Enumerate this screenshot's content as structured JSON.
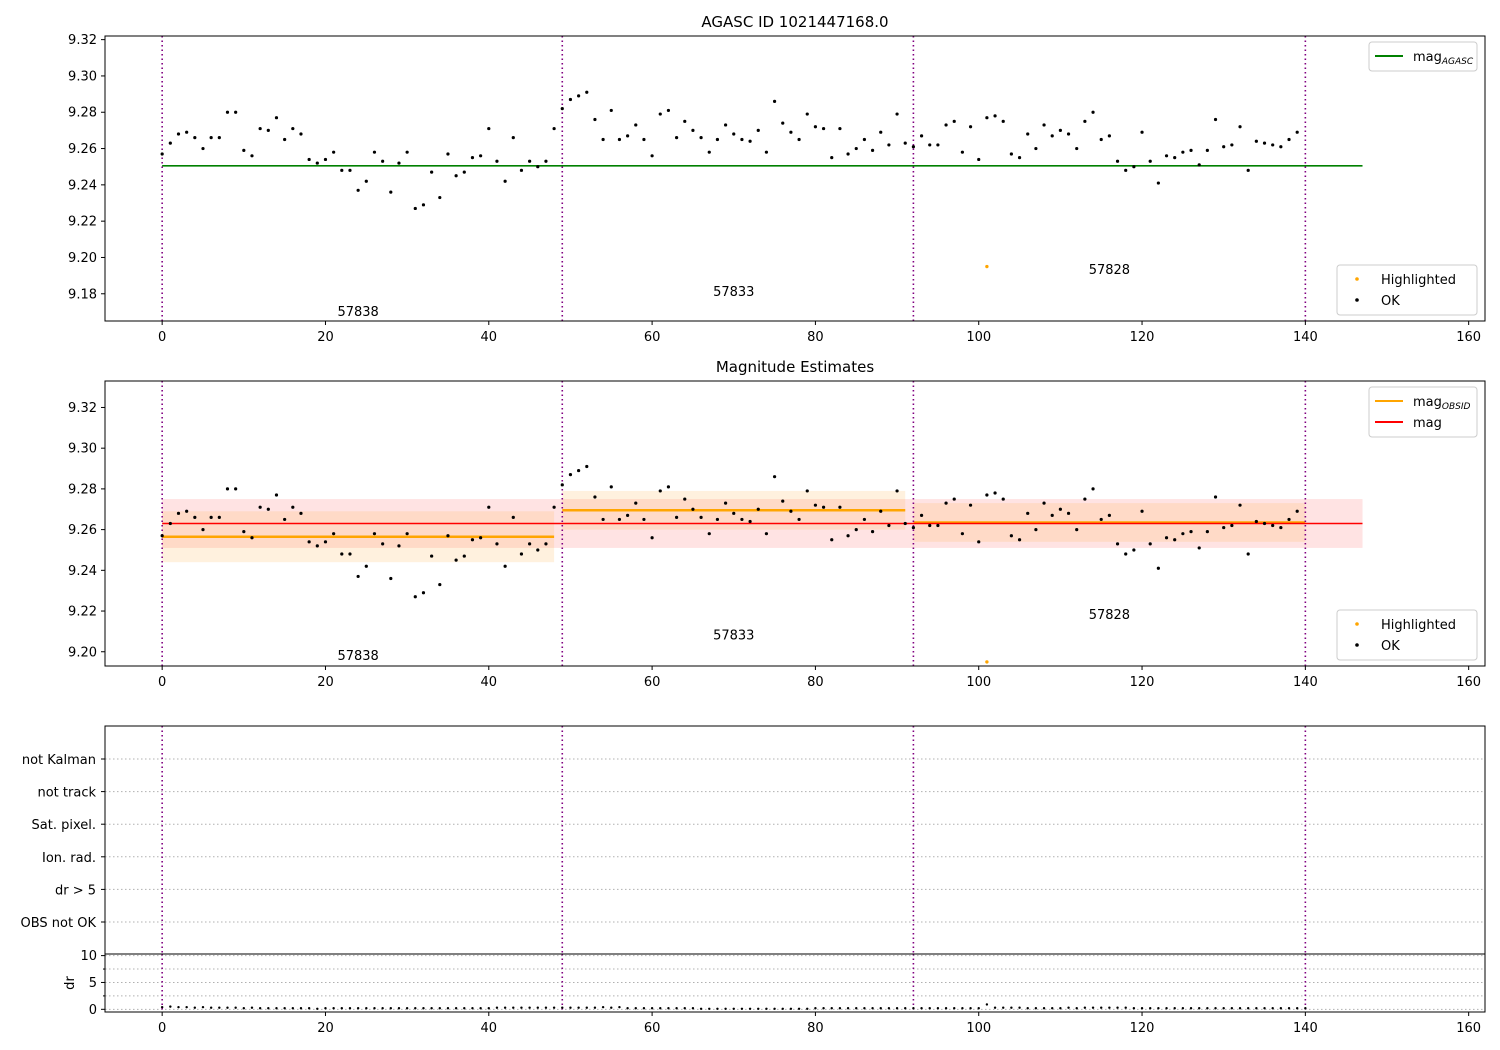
{
  "chart_data": [
    {
      "type": "scatter",
      "title": "AGASC ID 1021447168.0",
      "xlim": [
        -7,
        162
      ],
      "ylim": [
        9.165,
        9.322
      ],
      "xticks": [
        0,
        20,
        40,
        60,
        80,
        100,
        120,
        140,
        160
      ],
      "yticks": [
        9.18,
        9.2,
        9.22,
        9.24,
        9.26,
        9.28,
        9.3,
        9.32
      ],
      "obsid_boundaries": [
        0,
        49,
        92,
        140
      ],
      "obsid_labels": [
        {
          "text": "57838",
          "x": 24,
          "y": 9.17
        },
        {
          "text": "57833",
          "x": 70,
          "y": 9.181
        },
        {
          "text": "57828",
          "x": 116,
          "y": 9.193
        }
      ],
      "lines": [
        {
          "name": "mag_AGASC",
          "label_main": "mag",
          "label_sub": "AGASC",
          "color": "#008000",
          "y": 9.2505,
          "x0": 0,
          "x1": 147
        }
      ],
      "highlighted": [
        {
          "x": 101,
          "y": 9.195
        }
      ],
      "legends": [
        {
          "position": "upper right",
          "entries": [
            {
              "kind": "line",
              "color": "#008000",
              "label_main": "mag",
              "label_sub": "AGASC"
            }
          ]
        },
        {
          "position": "lower right",
          "entries": [
            {
              "kind": "dot",
              "color": "#ffa500",
              "label_main": "Highlighted",
              "label_sub": ""
            },
            {
              "kind": "dot",
              "color": "#000000",
              "label_main": "OK",
              "label_sub": ""
            }
          ]
        }
      ]
    },
    {
      "type": "scatter",
      "title": "Magnitude Estimates",
      "xlim": [
        -7,
        162
      ],
      "ylim": [
        9.193,
        9.333
      ],
      "xticks": [
        0,
        20,
        40,
        60,
        80,
        100,
        120,
        140,
        160
      ],
      "yticks": [
        9.2,
        9.22,
        9.24,
        9.26,
        9.28,
        9.3,
        9.32
      ],
      "obsid_boundaries": [
        0,
        49,
        92,
        140
      ],
      "obsid_labels": [
        {
          "text": "57838",
          "x": 24,
          "y": 9.198
        },
        {
          "text": "57833",
          "x": 70,
          "y": 9.208
        },
        {
          "text": "57828",
          "x": 116,
          "y": 9.218
        }
      ],
      "bands": [
        {
          "color": "#ff8080",
          "opacity": 0.22,
          "x0": 0,
          "x1": 147,
          "y0": 9.251,
          "y1": 9.275
        },
        {
          "color": "#ffb347",
          "opacity": 0.18,
          "x0": 0,
          "x1": 48,
          "y0": 9.244,
          "y1": 9.269
        },
        {
          "color": "#ffb347",
          "opacity": 0.18,
          "x0": 49,
          "x1": 91,
          "y0": 9.26,
          "y1": 9.279
        },
        {
          "color": "#ffb347",
          "opacity": 0.18,
          "x0": 92,
          "x1": 140,
          "y0": 9.254,
          "y1": 9.273
        }
      ],
      "lines": [
        {
          "name": "mag_OBSID_57838",
          "color": "#ffa500",
          "y": 9.2565,
          "x0": 0,
          "x1": 48
        },
        {
          "name": "mag_OBSID_57833",
          "color": "#ffa500",
          "y": 9.2695,
          "x0": 49,
          "x1": 91
        },
        {
          "name": "mag_OBSID_57828",
          "color": "#ffa500",
          "y": 9.2635,
          "x0": 92,
          "x1": 140
        },
        {
          "name": "mag",
          "color": "#ff0000",
          "y": 9.263,
          "x0": 0,
          "x1": 147
        }
      ],
      "highlighted": [
        {
          "x": 101,
          "y": 9.195
        }
      ],
      "legends": [
        {
          "position": "upper right",
          "entries": [
            {
              "kind": "line",
              "color": "#ffa500",
              "label_main": "mag",
              "label_sub": "OBSID"
            },
            {
              "kind": "line",
              "color": "#ff0000",
              "label_main": "mag",
              "label_sub": ""
            }
          ]
        },
        {
          "position": "lower right",
          "entries": [
            {
              "kind": "dot",
              "color": "#ffa500",
              "label_main": "Highlighted",
              "label_sub": ""
            },
            {
              "kind": "dot",
              "color": "#000000",
              "label_main": "OK",
              "label_sub": ""
            }
          ]
        }
      ]
    },
    {
      "type": "scatter",
      "title": "",
      "xlim": [
        -7,
        162
      ],
      "categories": [
        "not Kalman",
        "not track",
        "Sat. pixel.",
        "Ion. rad.",
        "dr > 5",
        "OBS not OK"
      ],
      "flag_points": []
    },
    {
      "type": "scatter",
      "title": "",
      "xlim": [
        -7,
        162
      ],
      "ylim": [
        -0.5,
        10.3
      ],
      "ylabel": "dr",
      "xticks": [
        0,
        20,
        40,
        60,
        80,
        100,
        120,
        140,
        160
      ],
      "yticks": [
        0,
        5,
        10
      ],
      "obsid_boundaries": [
        0,
        49,
        92,
        140
      ],
      "dr_values": [
        0.4,
        0.5,
        0.4,
        0.4,
        0.3,
        0.4,
        0.3,
        0.3,
        0.3,
        0.3,
        0.2,
        0.3,
        0.2,
        0.2,
        0.2,
        0.2,
        0.2,
        0.2,
        0.2,
        0.1,
        0.2,
        0.2,
        0.2,
        0.2,
        0.2,
        0.2,
        0.2,
        0.2,
        0.2,
        0.2,
        0.2,
        0.2,
        0.2,
        0.2,
        0.2,
        0.2,
        0.2,
        0.2,
        0.2,
        0.2,
        0.2,
        0.3,
        0.3,
        0.3,
        0.3,
        0.3,
        0.3,
        0.3,
        0.3,
        0.3,
        0.3,
        0.3,
        0.3,
        0.3,
        0.4,
        0.3,
        0.4,
        0.2,
        0.2,
        0.2,
        0.2,
        0.2,
        0.2,
        0.2,
        0.2,
        0.2,
        0.1,
        0.1,
        0.1,
        0.1,
        0.1,
        0.1,
        0.1,
        0.1,
        0.1,
        0.1,
        0.1,
        0.1,
        0.1,
        0.1,
        0.2,
        0.2,
        0.2,
        0.2,
        0.2,
        0.2,
        0.2,
        0.2,
        0.2,
        0.2,
        0.2,
        0.2,
        0.2,
        0.2,
        0.2,
        0.2,
        0.2,
        0.2,
        0.2,
        0.2,
        0.2,
        0.9,
        0.3,
        0.3,
        0.3,
        0.3,
        0.2,
        0.2,
        0.2,
        0.2,
        0.2,
        0.3,
        0.2,
        0.3,
        0.3,
        0.3,
        0.3,
        0.3,
        0.3,
        0.2,
        0.2,
        0.2,
        0.2,
        0.2,
        0.2,
        0.2,
        0.2,
        0.2,
        0.2,
        0.2,
        0.2,
        0.2,
        0.2,
        0.2,
        0.2,
        0.2,
        0.2,
        0.2,
        0.2,
        0.2,
        0.2
      ]
    }
  ],
  "mag_values": [
    9.257,
    9.263,
    9.268,
    9.269,
    9.266,
    9.26,
    9.266,
    9.266,
    9.28,
    9.28,
    9.259,
    9.256,
    9.271,
    9.27,
    9.277,
    9.265,
    9.271,
    9.268,
    9.254,
    9.252,
    9.254,
    9.258,
    9.248,
    9.248,
    9.237,
    9.242,
    9.258,
    9.253,
    9.236,
    9.252,
    9.258,
    9.227,
    9.229,
    9.247,
    9.233,
    9.257,
    9.245,
    9.247,
    9.255,
    9.256,
    9.271,
    9.253,
    9.242,
    9.266,
    9.248,
    9.253,
    9.25,
    9.253,
    9.271,
    9.282,
    9.287,
    9.289,
    9.291,
    9.276,
    9.265,
    9.281,
    9.265,
    9.267,
    9.273,
    9.265,
    9.256,
    9.279,
    9.281,
    9.266,
    9.275,
    9.27,
    9.266,
    9.258,
    9.265,
    9.273,
    9.268,
    9.265,
    9.264,
    9.27,
    9.258,
    9.286,
    9.274,
    9.269,
    9.265,
    9.279,
    9.272,
    9.271,
    9.255,
    9.271,
    9.257,
    9.26,
    9.265,
    9.259,
    9.269,
    9.262,
    9.279,
    9.263,
    9.261,
    9.267,
    9.262,
    9.262,
    9.273,
    9.275,
    9.258,
    9.272,
    9.254,
    9.277,
    9.278,
    9.275,
    9.257,
    9.255,
    9.268,
    9.26,
    9.273,
    9.267,
    9.27,
    9.268,
    9.26,
    9.275,
    9.28,
    9.265,
    9.267,
    9.253,
    9.248,
    9.25,
    9.269,
    9.253,
    9.241,
    9.256,
    9.255,
    9.258,
    9.259,
    9.251,
    9.259,
    9.276,
    9.261,
    9.262,
    9.272,
    9.248,
    9.264,
    9.263,
    9.262,
    9.261,
    9.265,
    9.269
  ]
}
